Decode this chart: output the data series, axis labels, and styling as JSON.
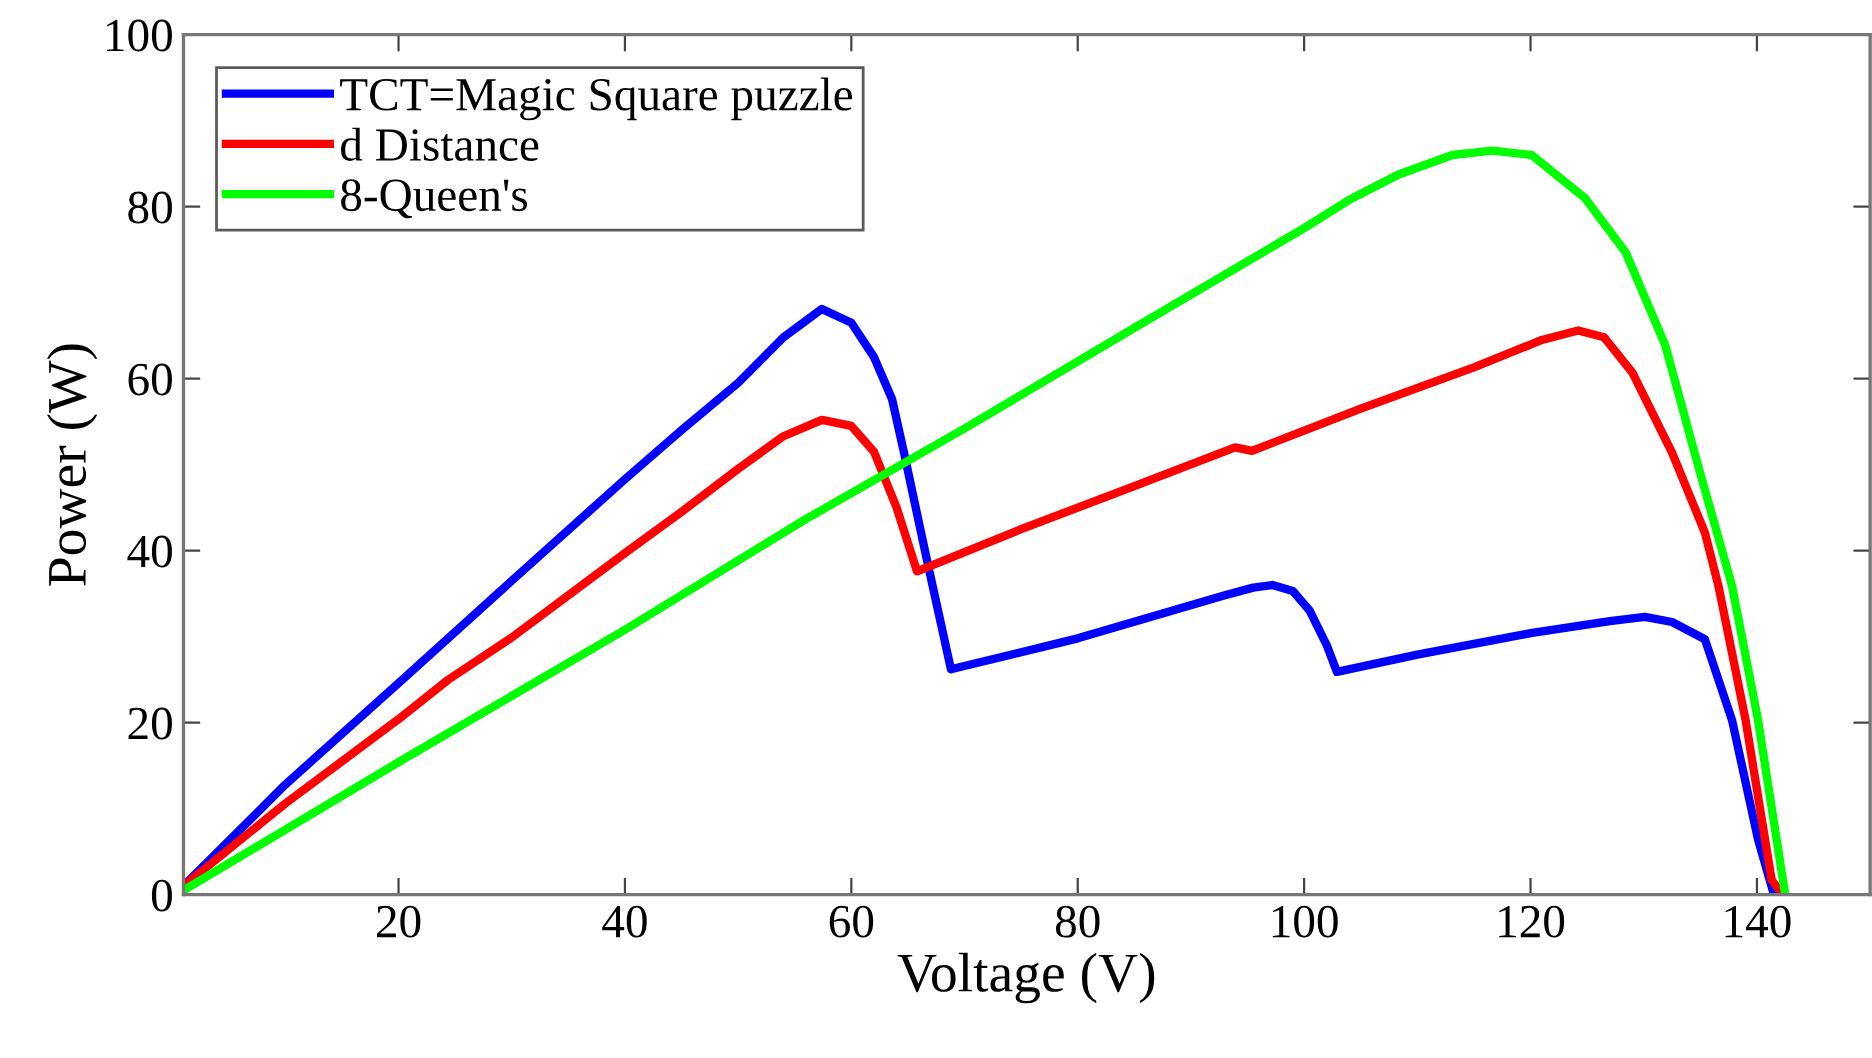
{
  "chart_data": {
    "type": "line",
    "xlabel": "Voltage (V)",
    "ylabel": "Power (W)",
    "xlim": [
      1,
      150
    ],
    "ylim": [
      0,
      100
    ],
    "xticks": [
      20,
      40,
      60,
      80,
      100,
      120,
      140
    ],
    "yticks": [
      0,
      20,
      40,
      60,
      80,
      100
    ],
    "grid": false,
    "legend": "top left",
    "marker": "none",
    "line_style": "solid",
    "series": [
      {
        "name": "TCT=Magic Square puzzle",
        "color": "#0000ff",
        "x": [
          1,
          10,
          20,
          30,
          40,
          45,
          50,
          54,
          57.4,
          60,
          62,
          63.6,
          64.7,
          66.5,
          68.8,
          80,
          93,
          95.5,
          97.2,
          99,
          100.5,
          102,
          102.9,
          110,
          120,
          127,
          130.1,
          132.5,
          135.4,
          137.8,
          140.1,
          141.5
        ],
        "values": [
          1,
          12.8,
          24.6,
          36.5,
          48.3,
          54,
          59.5,
          64.8,
          68.1,
          66.5,
          62.5,
          57.6,
          51.1,
          40,
          26.2,
          29.8,
          34.8,
          35.7,
          36,
          35.3,
          33,
          29,
          25.9,
          27.9,
          30.4,
          31.8,
          32.3,
          31.7,
          29.7,
          20.3,
          6.4,
          0
        ]
      },
      {
        "name": "d Distance",
        "color": "#ff0000",
        "x": [
          1,
          10,
          20,
          24.4,
          30,
          40,
          45,
          50,
          54,
          57.4,
          60,
          62,
          64,
          65.8,
          75,
          85,
          93.9,
          95.4,
          105,
          115,
          121,
          124.2,
          126.5,
          129,
          132.5,
          135.4,
          136.6,
          139,
          141.3,
          142.3
        ],
        "values": [
          1,
          10.6,
          20.4,
          25,
          29.9,
          39.7,
          44.5,
          49.5,
          53.3,
          55.2,
          54.5,
          51.5,
          45,
          37.6,
          42.5,
          47.5,
          52,
          51.6,
          56.5,
          61.3,
          64.5,
          65.6,
          64.8,
          60.7,
          51.4,
          42.1,
          35.9,
          20.3,
          1.7,
          0
        ]
      },
      {
        "name": "8-Queen's",
        "color": "#00ff00",
        "x": [
          1,
          20,
          40,
          55.9,
          70,
          85,
          100,
          104,
          108.3,
          113.1,
          116.6,
          120.1,
          124.8,
          128.4,
          131.9,
          134.8,
          137.8,
          140.1,
          142.5
        ],
        "values": [
          0.5,
          15.4,
          30.8,
          43.6,
          54.2,
          65.9,
          77.5,
          80.8,
          83.7,
          86,
          86.5,
          86,
          81,
          74.7,
          63.9,
          49.9,
          35.9,
          20.3,
          0
        ]
      }
    ]
  }
}
